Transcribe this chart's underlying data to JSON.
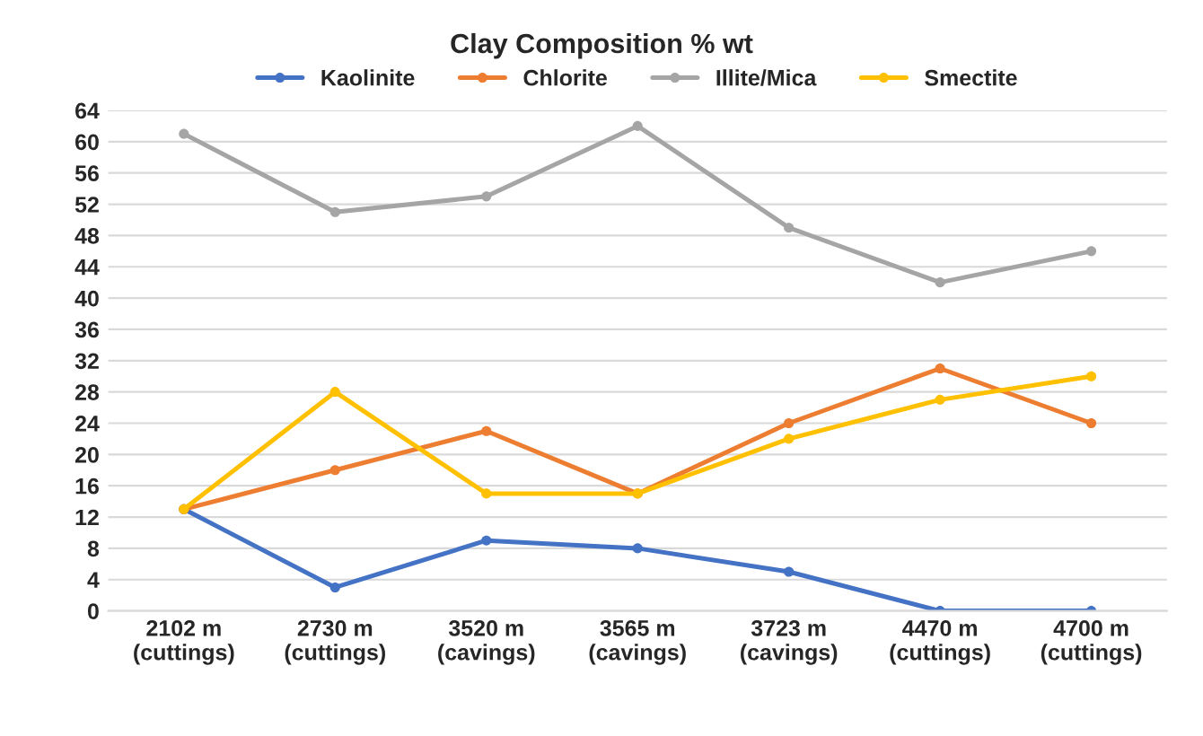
{
  "chart_data": {
    "type": "line",
    "title": "Clay Composition % wt",
    "categories": [
      "2102 m\n(cuttings)",
      "2730 m\n(cuttings)",
      "3520 m\n(cavings)",
      "3565 m\n(cavings)",
      "3723 m\n(cavings)",
      "4470 m\n(cuttings)",
      "4700 m\n(cuttings)"
    ],
    "series": [
      {
        "name": "Kaolinite",
        "color": "#4472c4",
        "values": [
          13,
          3,
          9,
          8,
          5,
          0,
          0
        ]
      },
      {
        "name": "Chlorite",
        "color": "#ed7d31",
        "values": [
          13,
          18,
          23,
          15,
          24,
          31,
          24
        ]
      },
      {
        "name": "Illite/Mica",
        "color": "#a5a5a5",
        "values": [
          61,
          51,
          53,
          62,
          49,
          42,
          46
        ]
      },
      {
        "name": "Smectite",
        "color": "#ffc000",
        "values": [
          13,
          28,
          15,
          15,
          22,
          27,
          30
        ]
      }
    ],
    "ylim": [
      0,
      64
    ],
    "yticks": [
      0,
      4,
      8,
      12,
      16,
      20,
      24,
      28,
      32,
      36,
      40,
      44,
      48,
      52,
      56,
      60,
      64
    ],
    "grid": "y",
    "legend": "top",
    "marker": "circle",
    "line_style": "solid"
  }
}
